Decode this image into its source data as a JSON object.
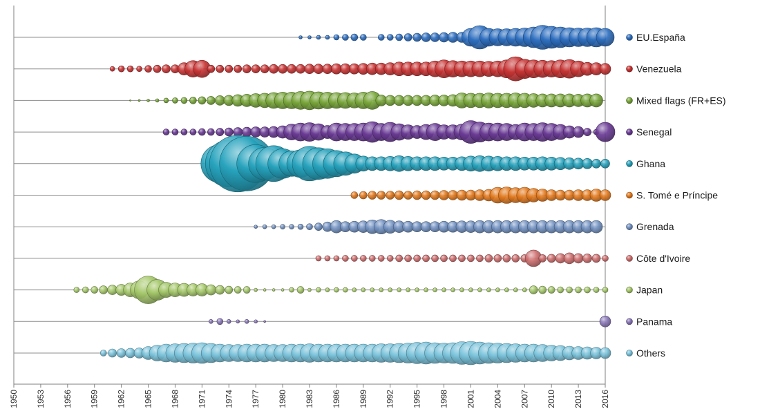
{
  "chart_data": {
    "type": "bubble-timeline",
    "title": "",
    "xlabel": "",
    "ylabel": "",
    "x_range": [
      1950,
      2016
    ],
    "x_ticks": [
      1950,
      1953,
      1956,
      1959,
      1962,
      1965,
      1968,
      1971,
      1974,
      1977,
      1980,
      1983,
      1986,
      1989,
      1992,
      1995,
      1998,
      2001,
      2004,
      2007,
      2010,
      2013,
      2016
    ],
    "legend_position": "right",
    "grid": false,
    "size_note": "bubble size indicates relative magnitude per year (relative scale, max = 10)",
    "series": [
      {
        "name": "EU.España",
        "color": "#2e6fc0",
        "years": [
          1982,
          1983,
          1984,
          1985,
          1986,
          1987,
          1988,
          1989,
          1991,
          1992,
          1993,
          1994,
          1995,
          1996,
          1997,
          1998,
          1999,
          2000,
          2001,
          2002,
          2003,
          2004,
          2005,
          2006,
          2007,
          2008,
          2009,
          2010,
          2011,
          2012,
          2013,
          2014,
          2015,
          2016
        ],
        "sizes": [
          0.5,
          0.5,
          0.6,
          0.6,
          0.8,
          0.9,
          1.0,
          0.9,
          0.9,
          0.9,
          1.0,
          1.1,
          1.2,
          1.3,
          1.3,
          1.4,
          1.5,
          1.5,
          2.6,
          3.4,
          2.6,
          2.5,
          2.5,
          2.6,
          2.7,
          3.0,
          3.5,
          3.2,
          3.0,
          2.8,
          2.7,
          2.7,
          2.8,
          2.6
        ]
      },
      {
        "name": "Venezuela",
        "color": "#c93434",
        "years": [
          1961,
          1962,
          1963,
          1964,
          1965,
          1966,
          1967,
          1968,
          1969,
          1970,
          1971,
          1972,
          1973,
          1974,
          1975,
          1976,
          1977,
          1978,
          1979,
          1980,
          1981,
          1982,
          1983,
          1984,
          1985,
          1986,
          1987,
          1988,
          1989,
          1990,
          1991,
          1992,
          1993,
          1994,
          1995,
          1996,
          1997,
          1998,
          1999,
          2000,
          2001,
          2002,
          2003,
          2004,
          2005,
          2006,
          2007,
          2008,
          2009,
          2010,
          2011,
          2012,
          2013,
          2014,
          2015,
          2016
        ],
        "sizes": [
          0.7,
          0.9,
          0.9,
          0.8,
          1.0,
          1.1,
          1.2,
          1.2,
          1.8,
          2.4,
          2.5,
          1.1,
          1.1,
          1.1,
          1.1,
          1.2,
          1.2,
          1.2,
          1.3,
          1.3,
          1.3,
          1.3,
          1.4,
          1.4,
          1.4,
          1.5,
          1.5,
          1.5,
          1.6,
          1.7,
          1.7,
          1.8,
          2.0,
          2.0,
          2.0,
          2.0,
          2.3,
          2.6,
          2.4,
          2.3,
          2.3,
          2.3,
          2.2,
          2.3,
          2.6,
          3.5,
          2.8,
          2.6,
          2.5,
          2.4,
          2.6,
          2.7,
          2.3,
          1.9,
          1.8,
          1.6
        ]
      },
      {
        "name": "Mixed flags (FR+ES)",
        "color": "#79a73a",
        "years": [
          1963,
          1964,
          1965,
          1966,
          1967,
          1968,
          1969,
          1970,
          1971,
          1972,
          1973,
          1974,
          1975,
          1976,
          1977,
          1978,
          1979,
          1980,
          1981,
          1982,
          1983,
          1984,
          1985,
          1986,
          1987,
          1988,
          1989,
          1990,
          1991,
          1992,
          1993,
          1994,
          1995,
          1996,
          1997,
          1998,
          1999,
          2000,
          2001,
          2002,
          2003,
          2004,
          2005,
          2006,
          2007,
          2008,
          2009,
          2010,
          2011,
          2012,
          2013,
          2014,
          2015
        ],
        "sizes": [
          0.2,
          0.3,
          0.4,
          0.5,
          0.7,
          0.8,
          0.9,
          1.0,
          1.1,
          1.2,
          1.4,
          1.5,
          1.7,
          1.8,
          2.0,
          2.1,
          2.3,
          2.4,
          2.4,
          2.6,
          2.7,
          2.5,
          2.4,
          2.3,
          2.3,
          2.2,
          2.4,
          2.6,
          1.6,
          1.5,
          1.5,
          1.5,
          1.5,
          1.5,
          1.6,
          1.6,
          1.7,
          2.2,
          2.1,
          2.1,
          2.2,
          2.1,
          2.1,
          2.2,
          2.1,
          2.0,
          1.9,
          1.9,
          1.9,
          1.9,
          1.8,
          1.9,
          1.9
        ]
      },
      {
        "name": "Senegal",
        "color": "#6a3a95",
        "years": [
          1967,
          1968,
          1969,
          1970,
          1971,
          1972,
          1973,
          1974,
          1975,
          1976,
          1977,
          1978,
          1979,
          1980,
          1981,
          1982,
          1983,
          1984,
          1985,
          1986,
          1987,
          1988,
          1989,
          1990,
          1991,
          1992,
          1993,
          1994,
          1995,
          1996,
          1997,
          1998,
          1999,
          2000,
          2001,
          2002,
          2003,
          2004,
          2005,
          2006,
          2007,
          2008,
          2009,
          2010,
          2011,
          2012,
          2013,
          2014,
          2015,
          2016
        ],
        "sizes": [
          0.9,
          0.9,
          0.9,
          0.9,
          1.0,
          1.0,
          1.1,
          1.2,
          1.3,
          1.4,
          1.5,
          1.5,
          1.6,
          1.8,
          2.3,
          2.6,
          2.7,
          2.4,
          1.9,
          2.6,
          2.5,
          2.5,
          2.6,
          3.0,
          2.5,
          2.8,
          2.4,
          2.1,
          1.9,
          2.2,
          2.5,
          2.1,
          2.1,
          2.3,
          3.3,
          2.9,
          2.6,
          2.6,
          2.5,
          2.2,
          2.6,
          2.5,
          2.7,
          2.5,
          2.2,
          1.8,
          1.6,
          1.1,
          0.8,
          2.8
        ]
      },
      {
        "name": "Ghana",
        "color": "#27a3bd",
        "years": [
          1973,
          1974,
          1975,
          1976,
          1977,
          1978,
          1979,
          1980,
          1981,
          1982,
          1983,
          1984,
          1985,
          1986,
          1987,
          1988,
          1989,
          1990,
          1991,
          1992,
          1993,
          1994,
          1995,
          1996,
          1997,
          1998,
          1999,
          2000,
          2001,
          2002,
          2003,
          2004,
          2005,
          2006,
          2007,
          2008,
          2009,
          2010,
          2011,
          2012,
          2013,
          2014,
          2015,
          2016
        ],
        "sizes": [
          5.5,
          6.8,
          8.2,
          7.9,
          5.5,
          4.7,
          5.2,
          4.3,
          3.7,
          4.0,
          5.0,
          4.6,
          4.3,
          3.8,
          3.4,
          2.8,
          2.2,
          2.0,
          2.0,
          2.1,
          2.3,
          2.1,
          2.0,
          2.0,
          2.0,
          1.9,
          1.9,
          2.0,
          2.2,
          2.3,
          2.2,
          2.1,
          2.0,
          2.0,
          1.9,
          1.9,
          2.0,
          1.9,
          1.8,
          1.7,
          1.6,
          1.5,
          1.3,
          1.3
        ]
      },
      {
        "name": "S. Tomé e Príncipe",
        "color": "#e37a1e",
        "years": [
          1988,
          1989,
          1990,
          1991,
          1992,
          1993,
          1994,
          1995,
          1996,
          1997,
          1998,
          1999,
          2000,
          2001,
          2002,
          2003,
          2004,
          2005,
          2006,
          2007,
          2008,
          2009,
          2010,
          2011,
          2012,
          2013,
          2014,
          2015,
          2016
        ],
        "sizes": [
          1.0,
          1.1,
          1.2,
          1.2,
          1.2,
          1.3,
          1.2,
          1.3,
          1.3,
          1.3,
          1.4,
          1.4,
          1.5,
          1.5,
          1.6,
          1.7,
          2.3,
          2.4,
          2.2,
          2.3,
          2.0,
          1.8,
          1.6,
          1.5,
          1.5,
          1.6,
          1.6,
          1.8,
          1.6
        ]
      },
      {
        "name": "Grenada",
        "color": "#7292c2",
        "years": [
          1977,
          1978,
          1979,
          1980,
          1981,
          1982,
          1983,
          1984,
          1985,
          1986,
          1987,
          1988,
          1989,
          1990,
          1991,
          1992,
          1993,
          1994,
          1995,
          1996,
          1997,
          1998,
          1999,
          2000,
          2001,
          2002,
          2003,
          2004,
          2005,
          2006,
          2007,
          2008,
          2009,
          2010,
          2011,
          2012,
          2013,
          2014,
          2015
        ],
        "sizes": [
          0.5,
          0.6,
          0.6,
          0.7,
          0.7,
          0.8,
          0.9,
          1.1,
          1.4,
          1.8,
          1.5,
          1.6,
          1.7,
          2.0,
          2.1,
          1.9,
          1.7,
          1.6,
          1.5,
          1.5,
          1.5,
          1.6,
          1.6,
          1.7,
          1.7,
          1.8,
          1.8,
          1.8,
          1.8,
          1.8,
          1.8,
          1.8,
          1.8,
          1.8,
          1.8,
          1.8,
          1.8,
          1.8,
          1.8
        ]
      },
      {
        "name": "Côte d'Ivoire",
        "color": "#cf6f6f",
        "years": [
          1984,
          1985,
          1986,
          1987,
          1988,
          1989,
          1990,
          1991,
          1992,
          1993,
          1994,
          1995,
          1996,
          1997,
          1998,
          1999,
          2000,
          2001,
          2002,
          2003,
          2004,
          2005,
          2006,
          2007,
          2008,
          2009,
          2010,
          2011,
          2012,
          2013,
          2014,
          2015,
          2016
        ],
        "sizes": [
          0.8,
          0.8,
          0.8,
          0.9,
          0.9,
          0.9,
          0.9,
          0.9,
          0.9,
          1.0,
          1.0,
          1.0,
          1.0,
          1.0,
          1.0,
          1.0,
          1.0,
          1.0,
          1.0,
          1.1,
          1.1,
          1.1,
          1.1,
          1.1,
          2.4,
          1.1,
          1.2,
          1.4,
          1.6,
          1.4,
          1.3,
          1.2,
          0.9
        ]
      },
      {
        "name": "Japan",
        "color": "#a6c96b",
        "years": [
          1957,
          1958,
          1959,
          1960,
          1961,
          1962,
          1963,
          1964,
          1965,
          1966,
          1967,
          1968,
          1969,
          1970,
          1971,
          1972,
          1973,
          1974,
          1975,
          1976,
          1977,
          1978,
          1979,
          1980,
          1981,
          1982,
          1983,
          1984,
          1985,
          1986,
          1987,
          1988,
          1989,
          1990,
          1991,
          1992,
          1993,
          1994,
          1995,
          1996,
          1997,
          1998,
          1999,
          2000,
          2001,
          2002,
          2003,
          2004,
          2005,
          2006,
          2007,
          2008,
          2009,
          2010,
          2011,
          2012,
          2013,
          2014,
          2015,
          2016
        ],
        "sizes": [
          0.8,
          0.9,
          1.0,
          1.2,
          1.4,
          1.6,
          2.0,
          2.6,
          4.0,
          3.0,
          2.2,
          2.0,
          1.9,
          1.8,
          1.8,
          1.5,
          1.3,
          1.1,
          1.0,
          1.0,
          0.5,
          0.4,
          0.4,
          0.4,
          0.7,
          1.0,
          0.5,
          0.7,
          0.6,
          0.7,
          0.7,
          0.6,
          0.6,
          0.6,
          0.6,
          0.6,
          0.6,
          0.6,
          0.6,
          0.6,
          0.6,
          0.6,
          0.6,
          0.6,
          0.6,
          0.6,
          0.6,
          0.6,
          0.6,
          0.6,
          0.6,
          1.2,
          1.1,
          1.0,
          0.9,
          0.9,
          0.9,
          0.9,
          0.8,
          0.8
        ]
      },
      {
        "name": "Panama",
        "color": "#8a78b8",
        "years": [
          1972,
          1973,
          1974,
          1975,
          1976,
          1977,
          1978,
          2016
        ],
        "sizes": [
          0.6,
          0.9,
          0.6,
          0.5,
          0.6,
          0.5,
          0.3,
          1.6
        ]
      },
      {
        "name": "Others",
        "color": "#7bc4dc",
        "years": [
          1960,
          1961,
          1962,
          1963,
          1964,
          1965,
          1966,
          1967,
          1968,
          1969,
          1970,
          1971,
          1972,
          1973,
          1974,
          1975,
          1976,
          1977,
          1978,
          1979,
          1980,
          1981,
          1982,
          1983,
          1984,
          1985,
          1986,
          1987,
          1988,
          1989,
          1990,
          1991,
          1992,
          1993,
          1994,
          1995,
          1996,
          1997,
          1998,
          1999,
          2000,
          2001,
          2002,
          2003,
          2004,
          2005,
          2006,
          2007,
          2008,
          2009,
          2010,
          2011,
          2012,
          2013,
          2014,
          2015,
          2016
        ],
        "sizes": [
          0.9,
          1.2,
          1.3,
          1.4,
          1.5,
          1.9,
          2.3,
          2.6,
          2.7,
          2.8,
          2.9,
          3.0,
          2.8,
          2.6,
          2.5,
          2.5,
          2.6,
          2.6,
          2.6,
          2.5,
          2.5,
          2.6,
          2.6,
          2.7,
          2.6,
          2.6,
          2.6,
          2.6,
          2.6,
          2.6,
          2.6,
          2.7,
          2.7,
          2.8,
          2.9,
          3.1,
          3.2,
          3.0,
          2.9,
          3.0,
          3.3,
          3.4,
          3.2,
          3.0,
          2.9,
          2.8,
          2.7,
          2.6,
          2.6,
          2.5,
          2.3,
          2.2,
          2.0,
          1.9,
          1.8,
          1.7,
          1.6
        ]
      }
    ]
  }
}
